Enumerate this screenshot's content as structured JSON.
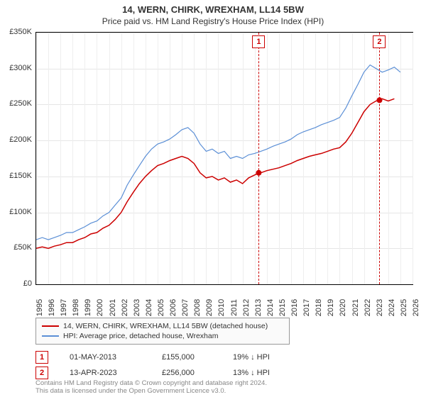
{
  "title": "14, WERN, CHIRK, WREXHAM, LL14 5BW",
  "subtitle": "Price paid vs. HM Land Registry's House Price Index (HPI)",
  "chart": {
    "type": "line",
    "background_color": "#ffffff",
    "grid_color": "#e6e6e6",
    "border_color": "#000000",
    "ylim": [
      0,
      350000
    ],
    "ytick_step": 50000,
    "y_format": "currency_k",
    "y_ticks": [
      "£0",
      "£50K",
      "£100K",
      "£150K",
      "£200K",
      "£250K",
      "£300K",
      "£350K"
    ],
    "xlim": [
      1995,
      2026
    ],
    "x_ticks": [
      1995,
      1996,
      1997,
      1998,
      1999,
      2000,
      2001,
      2002,
      2003,
      2004,
      2005,
      2006,
      2007,
      2008,
      2009,
      2010,
      2011,
      2012,
      2013,
      2014,
      2015,
      2016,
      2017,
      2018,
      2019,
      2020,
      2021,
      2022,
      2023,
      2024,
      2025,
      2026
    ],
    "series": [
      {
        "name": "property_price",
        "label": "14, WERN, CHIRK, WREXHAM, LL14 5BW (detached house)",
        "color": "#cc0000",
        "line_width": 1.5,
        "data": [
          [
            1995,
            50000
          ],
          [
            1995.5,
            52000
          ],
          [
            1996,
            50000
          ],
          [
            1996.5,
            53000
          ],
          [
            1997,
            55000
          ],
          [
            1997.5,
            58000
          ],
          [
            1998,
            58000
          ],
          [
            1998.5,
            62000
          ],
          [
            1999,
            65000
          ],
          [
            1999.5,
            70000
          ],
          [
            2000,
            72000
          ],
          [
            2000.5,
            78000
          ],
          [
            2001,
            82000
          ],
          [
            2001.5,
            90000
          ],
          [
            2002,
            100000
          ],
          [
            2002.5,
            115000
          ],
          [
            2003,
            128000
          ],
          [
            2003.5,
            140000
          ],
          [
            2004,
            150000
          ],
          [
            2004.5,
            158000
          ],
          [
            2005,
            165000
          ],
          [
            2005.5,
            168000
          ],
          [
            2006,
            172000
          ],
          [
            2006.5,
            175000
          ],
          [
            2007,
            178000
          ],
          [
            2007.5,
            175000
          ],
          [
            2008,
            168000
          ],
          [
            2008.5,
            155000
          ],
          [
            2009,
            148000
          ],
          [
            2009.5,
            150000
          ],
          [
            2010,
            145000
          ],
          [
            2010.5,
            148000
          ],
          [
            2011,
            142000
          ],
          [
            2011.5,
            145000
          ],
          [
            2012,
            140000
          ],
          [
            2012.5,
            148000
          ],
          [
            2013,
            152000
          ],
          [
            2013.33,
            155000
          ],
          [
            2013.5,
            155000
          ],
          [
            2014,
            158000
          ],
          [
            2014.5,
            160000
          ],
          [
            2015,
            162000
          ],
          [
            2015.5,
            165000
          ],
          [
            2016,
            168000
          ],
          [
            2016.5,
            172000
          ],
          [
            2017,
            175000
          ],
          [
            2017.5,
            178000
          ],
          [
            2018,
            180000
          ],
          [
            2018.5,
            182000
          ],
          [
            2019,
            185000
          ],
          [
            2019.5,
            188000
          ],
          [
            2020,
            190000
          ],
          [
            2020.5,
            198000
          ],
          [
            2021,
            210000
          ],
          [
            2021.5,
            225000
          ],
          [
            2022,
            240000
          ],
          [
            2022.5,
            250000
          ],
          [
            2023,
            255000
          ],
          [
            2023.28,
            256000
          ],
          [
            2023.5,
            258000
          ],
          [
            2024,
            255000
          ],
          [
            2024.5,
            258000
          ]
        ]
      },
      {
        "name": "hpi",
        "label": "HPI: Average price, detached house, Wrexham",
        "color": "#5b8fd6",
        "line_width": 1.2,
        "data": [
          [
            1995,
            62000
          ],
          [
            1995.5,
            65000
          ],
          [
            1996,
            62000
          ],
          [
            1996.5,
            65000
          ],
          [
            1997,
            68000
          ],
          [
            1997.5,
            72000
          ],
          [
            1998,
            72000
          ],
          [
            1998.5,
            76000
          ],
          [
            1999,
            80000
          ],
          [
            1999.5,
            85000
          ],
          [
            2000,
            88000
          ],
          [
            2000.5,
            95000
          ],
          [
            2001,
            100000
          ],
          [
            2001.5,
            110000
          ],
          [
            2002,
            120000
          ],
          [
            2002.5,
            138000
          ],
          [
            2003,
            152000
          ],
          [
            2003.5,
            165000
          ],
          [
            2004,
            178000
          ],
          [
            2004.5,
            188000
          ],
          [
            2005,
            195000
          ],
          [
            2005.5,
            198000
          ],
          [
            2006,
            202000
          ],
          [
            2006.5,
            208000
          ],
          [
            2007,
            215000
          ],
          [
            2007.5,
            218000
          ],
          [
            2008,
            210000
          ],
          [
            2008.5,
            195000
          ],
          [
            2009,
            185000
          ],
          [
            2009.5,
            188000
          ],
          [
            2010,
            182000
          ],
          [
            2010.5,
            185000
          ],
          [
            2011,
            175000
          ],
          [
            2011.5,
            178000
          ],
          [
            2012,
            175000
          ],
          [
            2012.5,
            180000
          ],
          [
            2013,
            182000
          ],
          [
            2013.5,
            185000
          ],
          [
            2014,
            188000
          ],
          [
            2014.5,
            192000
          ],
          [
            2015,
            195000
          ],
          [
            2015.5,
            198000
          ],
          [
            2016,
            202000
          ],
          [
            2016.5,
            208000
          ],
          [
            2017,
            212000
          ],
          [
            2017.5,
            215000
          ],
          [
            2018,
            218000
          ],
          [
            2018.5,
            222000
          ],
          [
            2019,
            225000
          ],
          [
            2019.5,
            228000
          ],
          [
            2020,
            232000
          ],
          [
            2020.5,
            245000
          ],
          [
            2021,
            262000
          ],
          [
            2021.5,
            278000
          ],
          [
            2022,
            295000
          ],
          [
            2022.5,
            305000
          ],
          [
            2023,
            300000
          ],
          [
            2023.5,
            295000
          ],
          [
            2024,
            298000
          ],
          [
            2024.5,
            302000
          ],
          [
            2025,
            295000
          ]
        ]
      }
    ],
    "sale_markers": [
      {
        "index": 1,
        "year": 2013.33,
        "price": 155000,
        "date_label": "01-MAY-2013",
        "price_label": "£155,000",
        "delta_label": "19% ↓ HPI"
      },
      {
        "index": 2,
        "year": 2023.28,
        "price": 256000,
        "date_label": "13-APR-2023",
        "price_label": "£256,000",
        "delta_label": "13% ↓ HPI"
      }
    ],
    "marker_style": {
      "fill": "#cc0000",
      "radius": 4
    }
  },
  "legend": {
    "border_color": "#999999",
    "background_color": "#fafafa",
    "fontsize": 10.5
  },
  "footer_lines": [
    "Contains HM Land Registry data © Crown copyright and database right 2024.",
    "This data is licensed under the Open Government Licence v3.0."
  ]
}
